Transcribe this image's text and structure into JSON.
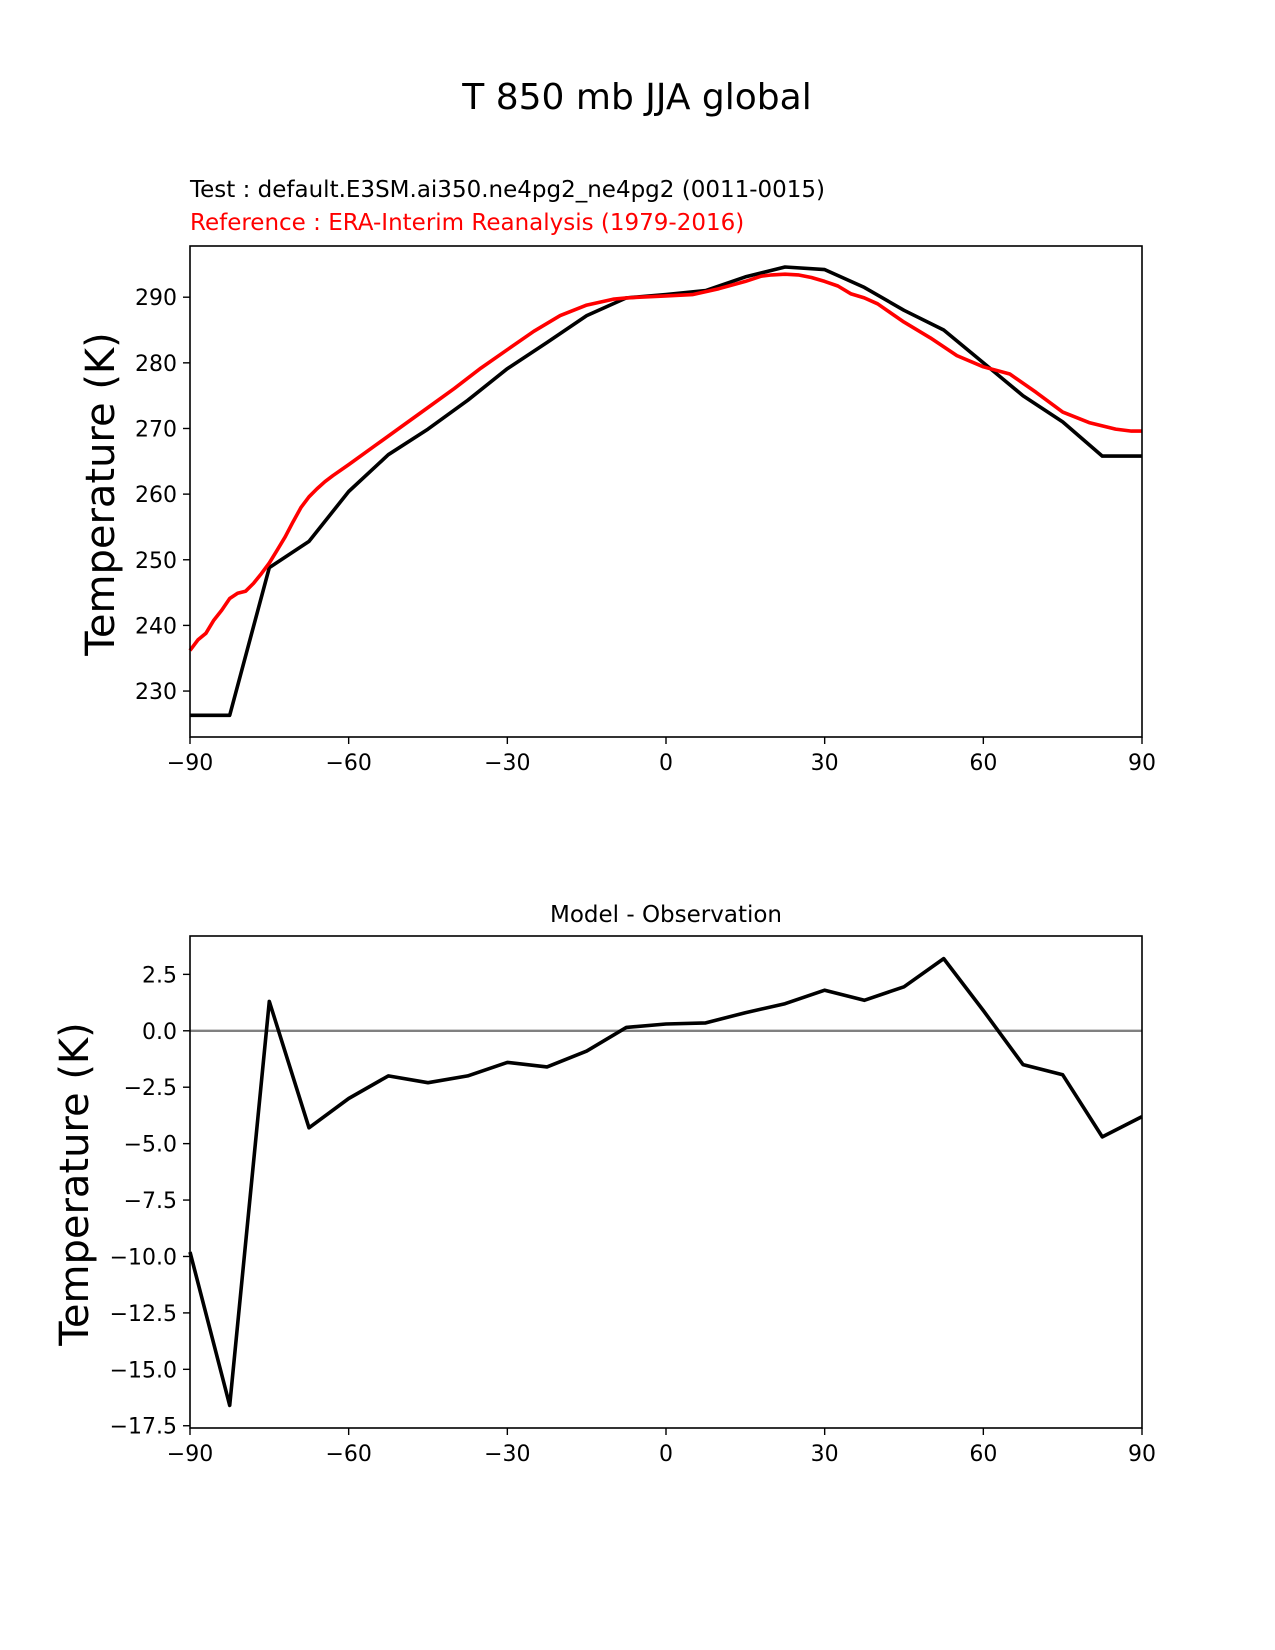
{
  "figure": {
    "title": "T 850 mb JJA global",
    "colors": {
      "test": "#000000",
      "reference": "#ff0000",
      "zero_line": "#808080",
      "axes": "#000000"
    }
  },
  "chart_data": [
    {
      "type": "line",
      "test_label": "Test : default.E3SM.ai350.ne4pg2_ne4pg2 (0011-0015)",
      "reference_label": "Reference : ERA-Interim Reanalysis (1979-2016)",
      "xlabel": "",
      "ylabel": "Temperature (K)",
      "xlim": [
        -90,
        90
      ],
      "ylim": [
        223,
        297.8
      ],
      "xticks": [
        -90,
        -60,
        -30,
        0,
        30,
        60,
        90
      ],
      "xtick_labels": [
        "−90",
        "−60",
        "−30",
        "0",
        "30",
        "60",
        "90"
      ],
      "yticks": [
        230,
        240,
        250,
        260,
        270,
        280,
        290
      ],
      "ytick_labels": [
        "230",
        "240",
        "250",
        "260",
        "270",
        "280",
        "290"
      ],
      "series": [
        {
          "name": "Test",
          "color": "#000000",
          "x": [
            -90,
            -82.5,
            -75,
            -67.5,
            -60,
            -52.5,
            -45,
            -37.5,
            -30,
            -22.5,
            -15,
            -7.5,
            0,
            7.5,
            15,
            22.5,
            30,
            37.5,
            45,
            52.5,
            60,
            67.5,
            75,
            82.5,
            90
          ],
          "y": [
            226.3,
            226.3,
            248.8,
            252.8,
            260.4,
            266.0,
            269.9,
            274.3,
            279.1,
            283.1,
            287.2,
            289.9,
            290.4,
            291.0,
            293.1,
            294.6,
            294.2,
            291.5,
            288.0,
            285.0,
            280.0,
            275.0,
            271.0,
            265.8,
            265.8
          ]
        },
        {
          "name": "Reference",
          "color": "#ff0000",
          "x": [
            -90,
            -88.5,
            -87,
            -85.5,
            -84,
            -82.5,
            -81,
            -79.5,
            -78,
            -76.5,
            -75,
            -73.5,
            -72,
            -70.5,
            -69,
            -67.5,
            -66,
            -64.5,
            -63,
            -60,
            -55,
            -50,
            -45,
            -40,
            -35,
            -30,
            -25,
            -20,
            -15,
            -10,
            -7.5,
            -5,
            0,
            5,
            10,
            15,
            18,
            20,
            22.5,
            25,
            27.5,
            30,
            32.5,
            35,
            37.5,
            40,
            42.5,
            45,
            50,
            55,
            60,
            65,
            70,
            75,
            80,
            85,
            88,
            90
          ],
          "y": [
            236.2,
            237.8,
            238.8,
            240.8,
            242.3,
            244.1,
            244.9,
            245.2,
            246.4,
            247.9,
            249.5,
            251.5,
            253.5,
            255.8,
            258.0,
            259.6,
            260.8,
            261.9,
            262.8,
            264.5,
            267.4,
            270.3,
            273.2,
            276.1,
            279.2,
            282.0,
            284.8,
            287.2,
            288.8,
            289.7,
            289.9,
            290.0,
            290.2,
            290.4,
            291.3,
            292.4,
            293.2,
            293.4,
            293.5,
            293.4,
            293.0,
            292.4,
            291.7,
            290.5,
            289.9,
            289.0,
            287.6,
            286.2,
            283.8,
            281.1,
            279.4,
            278.3,
            275.5,
            272.5,
            270.9,
            269.9,
            269.6,
            269.6
          ]
        }
      ]
    },
    {
      "type": "line",
      "title": "Model - Observation",
      "xlabel": "",
      "ylabel": "Temperature (K)",
      "xlim": [
        -90,
        90
      ],
      "ylim": [
        -17.6,
        4.2
      ],
      "xticks": [
        -90,
        -60,
        -30,
        0,
        30,
        60,
        90
      ],
      "xtick_labels": [
        "−90",
        "−60",
        "−30",
        "0",
        "30",
        "60",
        "90"
      ],
      "yticks": [
        2.5,
        0,
        -2.5,
        -5,
        -7.5,
        -10,
        -12.5,
        -15,
        -17.5
      ],
      "ytick_labels": [
        "2.5",
        "0.0",
        "−2.5",
        "−5.0",
        "−7.5",
        "−10.0",
        "−12.5",
        "−15.0",
        "−17.5"
      ],
      "zero_line": 0,
      "series": [
        {
          "name": "Model - Observation",
          "color": "#000000",
          "x": [
            -90,
            -82.5,
            -75,
            -67.5,
            -60,
            -52.5,
            -45,
            -37.5,
            -30,
            -22.5,
            -15,
            -7.5,
            0,
            7.5,
            15,
            22.5,
            30,
            37.5,
            45,
            52.5,
            60,
            67.5,
            75,
            82.5,
            90
          ],
          "y": [
            -9.8,
            -16.6,
            1.3,
            -4.3,
            -3.0,
            -2.0,
            -2.3,
            -2.0,
            -1.4,
            -1.6,
            -0.9,
            0.15,
            0.3,
            0.35,
            0.8,
            1.2,
            1.8,
            1.35,
            1.95,
            3.2,
            0.9,
            -1.5,
            -1.95,
            -4.7,
            -3.8
          ]
        }
      ]
    }
  ]
}
